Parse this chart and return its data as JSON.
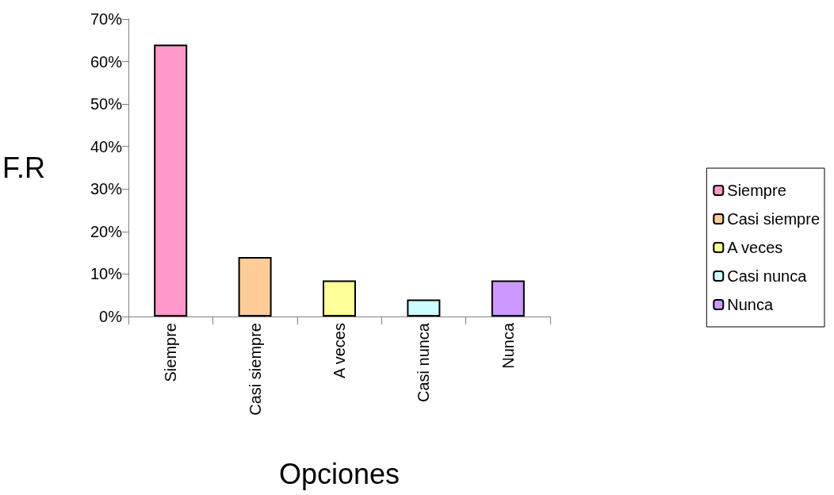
{
  "chart_data": {
    "type": "bar",
    "xlabel": "Opciones",
    "ylabel": "F.R",
    "categories": [
      "Siempre",
      "Casi siempre",
      "A veces",
      "Casi nunca",
      "Nunca"
    ],
    "series": [
      {
        "name": "Siempre",
        "color": "#ff99cc",
        "values": [
          64,
          null,
          null,
          null,
          null
        ]
      },
      {
        "name": "Casi siempre",
        "color": "#ffcc99",
        "values": [
          null,
          14,
          null,
          null,
          null
        ]
      },
      {
        "name": "A veces",
        "color": "#ffff99",
        "values": [
          null,
          null,
          8.5,
          null,
          null
        ]
      },
      {
        "name": "Casi nunca",
        "color": "#ccffff",
        "values": [
          null,
          null,
          null,
          4,
          null
        ]
      },
      {
        "name": "Nunca",
        "color": "#cc99ff",
        "values": [
          null,
          null,
          null,
          null,
          8.5
        ]
      }
    ],
    "ylim": [
      0,
      70
    ],
    "yticks": [
      {
        "value": 0,
        "label": "0%"
      },
      {
        "value": 10,
        "label": "10%"
      },
      {
        "value": 20,
        "label": "20%"
      },
      {
        "value": 30,
        "label": "30%"
      },
      {
        "value": 40,
        "label": "40%"
      },
      {
        "value": 50,
        "label": "50%"
      },
      {
        "value": 60,
        "label": "60%"
      },
      {
        "value": 70,
        "label": "70%"
      }
    ],
    "grid": false,
    "legend": "right"
  }
}
